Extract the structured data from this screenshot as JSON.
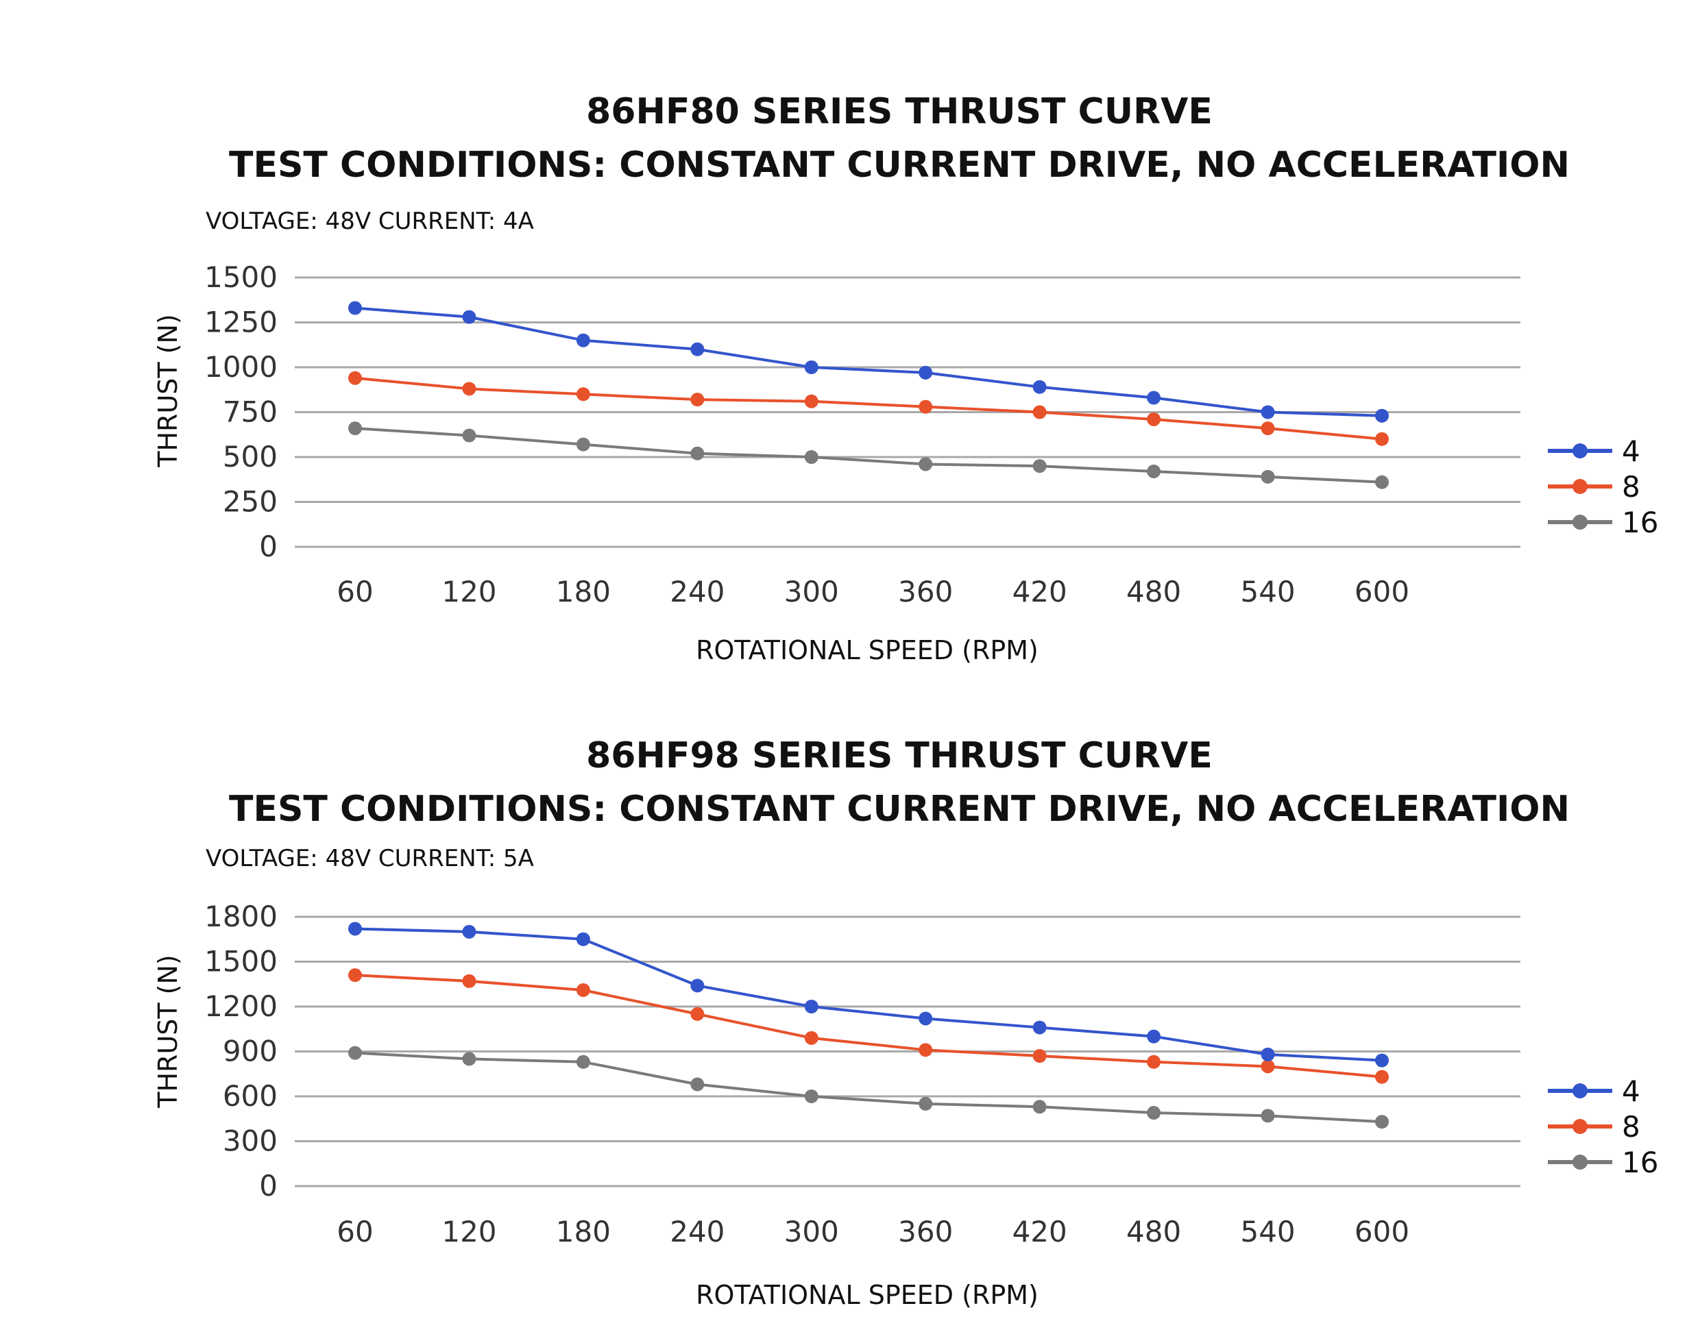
{
  "chart_data": [
    {
      "type": "line",
      "title": "86HF80 SERIES THRUST CURVE",
      "subtitle": "TEST CONDITIONS: CONSTANT CURRENT DRIVE, NO ACCELERATION",
      "conditions": "VOLTAGE: 48V CURRENT: 4A",
      "xlabel": "ROTATIONAL SPEED (RPM)",
      "ylabel": "THRUST (N)",
      "categories": [
        "60",
        "120",
        "180",
        "240",
        "300",
        "360",
        "420",
        "480",
        "540",
        "600"
      ],
      "yticks": [
        "0",
        "250",
        "500",
        "750",
        "1000",
        "1250",
        "1500"
      ],
      "ylim": [
        0,
        1500
      ],
      "grid": true,
      "legend_position": "right",
      "series": [
        {
          "name": "4",
          "color": "#3355cc",
          "values": [
            1330,
            1280,
            1150,
            1100,
            1000,
            970,
            890,
            830,
            750,
            730
          ]
        },
        {
          "name": "8",
          "color": "#e8522a",
          "values": [
            940,
            880,
            850,
            820,
            810,
            780,
            750,
            710,
            660,
            600
          ]
        },
        {
          "name": "16",
          "color": "#7a7a7a",
          "values": [
            660,
            620,
            570,
            520,
            500,
            460,
            450,
            420,
            390,
            360
          ]
        }
      ]
    },
    {
      "type": "line",
      "title": "86HF98 SERIES THRUST CURVE",
      "subtitle": "TEST CONDITIONS: CONSTANT CURRENT DRIVE, NO ACCELERATION",
      "conditions": "VOLTAGE: 48V CURRENT: 5A",
      "xlabel": "ROTATIONAL SPEED (RPM)",
      "ylabel": "THRUST (N)",
      "categories": [
        "60",
        "120",
        "180",
        "240",
        "300",
        "360",
        "420",
        "480",
        "540",
        "600"
      ],
      "yticks": [
        "0",
        "300",
        "600",
        "900",
        "1200",
        "1500",
        "1800"
      ],
      "ylim": [
        0,
        1800
      ],
      "grid": true,
      "legend_position": "right",
      "series": [
        {
          "name": "4",
          "color": "#3355cc",
          "values": [
            1720,
            1700,
            1650,
            1340,
            1200,
            1120,
            1060,
            1000,
            880,
            840
          ]
        },
        {
          "name": "8",
          "color": "#e8522a",
          "values": [
            1410,
            1370,
            1310,
            1150,
            990,
            910,
            870,
            830,
            800,
            730
          ]
        },
        {
          "name": "16",
          "color": "#7a7a7a",
          "values": [
            890,
            850,
            830,
            680,
            600,
            550,
            530,
            490,
            470,
            430
          ]
        }
      ]
    }
  ]
}
